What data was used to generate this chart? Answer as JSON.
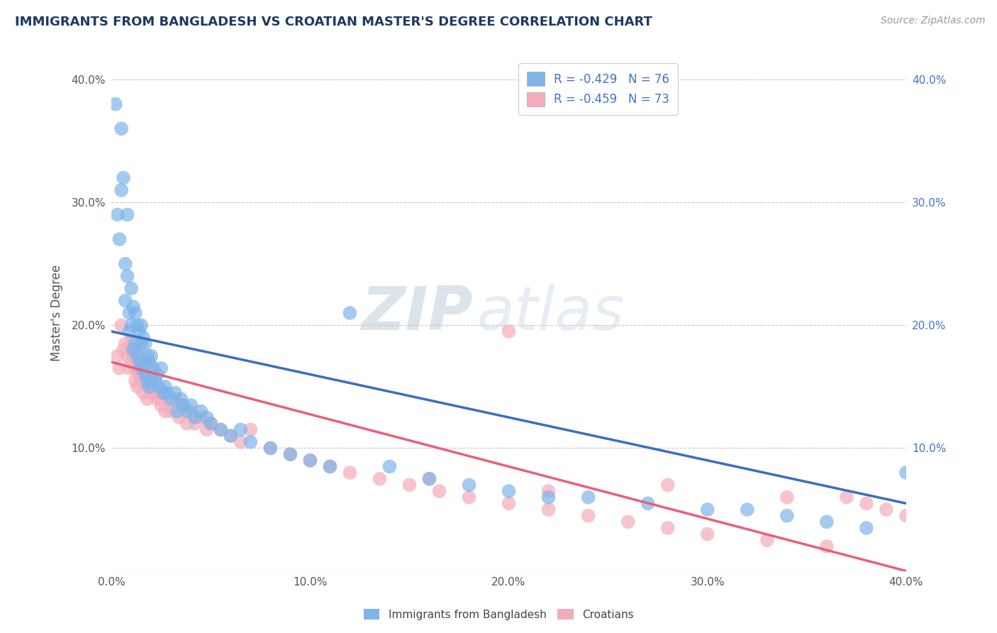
{
  "title": "IMMIGRANTS FROM BANGLADESH VS CROATIAN MASTER'S DEGREE CORRELATION CHART",
  "source_text": "Source: ZipAtlas.com",
  "ylabel": "Master's Degree",
  "legend_blue_r": "R = -0.429",
  "legend_blue_n": "N = 76",
  "legend_pink_r": "R = -0.459",
  "legend_pink_n": "N = 73",
  "watermark_zip": "ZIP",
  "watermark_atlas": "atlas",
  "xlim": [
    0.0,
    0.4
  ],
  "ylim": [
    0.0,
    0.42
  ],
  "xtick_labels": [
    "0.0%",
    "10.0%",
    "20.0%",
    "30.0%",
    "40.0%"
  ],
  "xtick_vals": [
    0.0,
    0.1,
    0.2,
    0.3,
    0.4
  ],
  "ytick_labels": [
    "10.0%",
    "20.0%",
    "30.0%",
    "40.0%"
  ],
  "ytick_vals": [
    0.1,
    0.2,
    0.3,
    0.4
  ],
  "blue_color": "#7EB4EA",
  "pink_color": "#F4ACBA",
  "blue_line_color": "#3A6FBF",
  "pink_line_color": "#E8607A",
  "title_color": "#1F3864",
  "axis_label_color": "#555555",
  "tick_color": "#555555",
  "right_tick_color": "#4472C4",
  "grid_color": "#C8C8C8",
  "background_color": "#FFFFFF",
  "blue_scatter_x": [
    0.002,
    0.003,
    0.004,
    0.005,
    0.005,
    0.006,
    0.007,
    0.007,
    0.008,
    0.008,
    0.009,
    0.009,
    0.01,
    0.01,
    0.011,
    0.011,
    0.012,
    0.012,
    0.013,
    0.013,
    0.014,
    0.014,
    0.015,
    0.015,
    0.015,
    0.016,
    0.016,
    0.017,
    0.017,
    0.018,
    0.018,
    0.019,
    0.019,
    0.02,
    0.02,
    0.021,
    0.022,
    0.023,
    0.024,
    0.025,
    0.026,
    0.027,
    0.028,
    0.03,
    0.032,
    0.033,
    0.035,
    0.036,
    0.038,
    0.04,
    0.042,
    0.045,
    0.048,
    0.05,
    0.055,
    0.06,
    0.065,
    0.07,
    0.08,
    0.09,
    0.1,
    0.11,
    0.12,
    0.14,
    0.16,
    0.18,
    0.2,
    0.22,
    0.24,
    0.27,
    0.3,
    0.32,
    0.34,
    0.36,
    0.38,
    0.4
  ],
  "blue_scatter_y": [
    0.38,
    0.29,
    0.27,
    0.36,
    0.31,
    0.32,
    0.25,
    0.22,
    0.29,
    0.24,
    0.21,
    0.195,
    0.23,
    0.2,
    0.215,
    0.18,
    0.21,
    0.185,
    0.2,
    0.175,
    0.195,
    0.17,
    0.2,
    0.185,
    0.165,
    0.19,
    0.17,
    0.185,
    0.16,
    0.175,
    0.155,
    0.17,
    0.15,
    0.175,
    0.155,
    0.165,
    0.155,
    0.16,
    0.15,
    0.165,
    0.145,
    0.15,
    0.145,
    0.14,
    0.145,
    0.13,
    0.14,
    0.135,
    0.13,
    0.135,
    0.125,
    0.13,
    0.125,
    0.12,
    0.115,
    0.11,
    0.115,
    0.105,
    0.1,
    0.095,
    0.09,
    0.085,
    0.21,
    0.085,
    0.075,
    0.07,
    0.065,
    0.06,
    0.06,
    0.055,
    0.05,
    0.05,
    0.045,
    0.04,
    0.035,
    0.08
  ],
  "pink_scatter_x": [
    0.003,
    0.004,
    0.005,
    0.006,
    0.007,
    0.008,
    0.009,
    0.01,
    0.01,
    0.011,
    0.012,
    0.012,
    0.013,
    0.013,
    0.014,
    0.015,
    0.015,
    0.016,
    0.016,
    0.017,
    0.018,
    0.018,
    0.019,
    0.02,
    0.02,
    0.021,
    0.022,
    0.023,
    0.024,
    0.025,
    0.026,
    0.027,
    0.028,
    0.03,
    0.032,
    0.034,
    0.036,
    0.038,
    0.04,
    0.042,
    0.045,
    0.048,
    0.05,
    0.055,
    0.06,
    0.065,
    0.07,
    0.08,
    0.09,
    0.1,
    0.11,
    0.12,
    0.135,
    0.15,
    0.165,
    0.18,
    0.2,
    0.22,
    0.24,
    0.26,
    0.28,
    0.3,
    0.33,
    0.36,
    0.37,
    0.38,
    0.39,
    0.4,
    0.2,
    0.16,
    0.28,
    0.22,
    0.34
  ],
  "pink_scatter_y": [
    0.175,
    0.165,
    0.2,
    0.18,
    0.185,
    0.175,
    0.165,
    0.185,
    0.17,
    0.175,
    0.165,
    0.155,
    0.165,
    0.15,
    0.16,
    0.175,
    0.155,
    0.16,
    0.145,
    0.155,
    0.155,
    0.14,
    0.15,
    0.165,
    0.145,
    0.15,
    0.145,
    0.14,
    0.145,
    0.135,
    0.145,
    0.13,
    0.14,
    0.13,
    0.14,
    0.125,
    0.135,
    0.12,
    0.13,
    0.12,
    0.125,
    0.115,
    0.12,
    0.115,
    0.11,
    0.105,
    0.115,
    0.1,
    0.095,
    0.09,
    0.085,
    0.08,
    0.075,
    0.07,
    0.065,
    0.06,
    0.055,
    0.05,
    0.045,
    0.04,
    0.035,
    0.03,
    0.025,
    0.02,
    0.06,
    0.055,
    0.05,
    0.045,
    0.195,
    0.075,
    0.07,
    0.065,
    0.06
  ],
  "blue_line_x0": 0.0,
  "blue_line_y0": 0.195,
  "blue_line_x1": 0.4,
  "blue_line_y1": 0.055,
  "pink_line_x0": 0.0,
  "pink_line_y0": 0.17,
  "pink_line_x1": 0.4,
  "pink_line_y1": 0.0
}
